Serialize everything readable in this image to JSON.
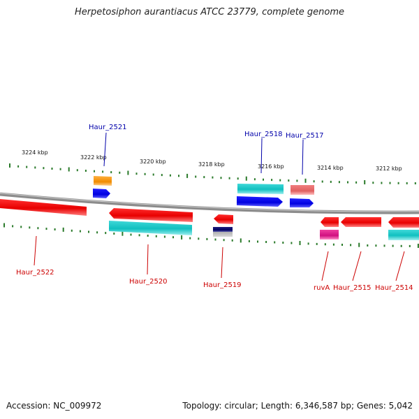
{
  "title": "Herpetosiphon aurantiacus ATCC 23779, complete genome",
  "footer": {
    "accession": "Accession: NC_009972",
    "stats": "Topology: circular; Length: 6,346,587 bp; Genes: 5,042"
  },
  "colors": {
    "backbone": "#8c8c8c",
    "forward_label": "#0000aa",
    "reverse_label": "#cc0000",
    "tick": "#2a7a2a"
  },
  "scale_labels": [
    "3224 kbp",
    "3222 kbp",
    "3220 kbp",
    "3218 kbp",
    "3216 kbp",
    "3214 kbp",
    "3212 kbp"
  ],
  "forward_gene_labels": [
    "Haur_2521",
    "Haur_2518",
    "Haur_2517"
  ],
  "reverse_gene_labels": [
    "Haur_2522",
    "Haur_2520",
    "Haur_2519",
    "ruvA",
    "Haur_2515",
    "Haur_2514"
  ]
}
